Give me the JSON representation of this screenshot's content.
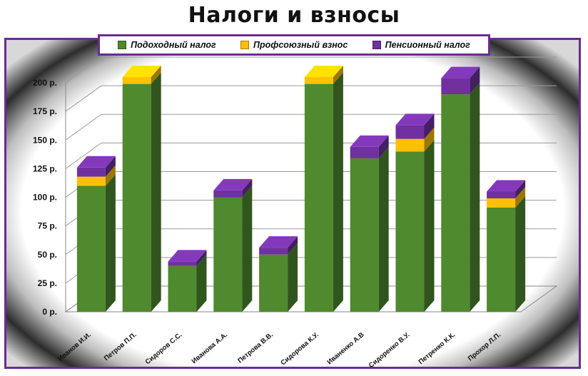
{
  "chart_data": {
    "type": "bar",
    "stacked": true,
    "title": "Налоги и взносы",
    "categories": [
      "Иванов И.И.",
      "Петров П.П.",
      "Сидоров С.С.",
      "Иванова А.А.",
      "Петрова В.В.",
      "Сидорова К.У.",
      "Иваненко А.В",
      "Сидоренко В.У.",
      "Петренко К.К.",
      "Прохор Л.П."
    ],
    "series": [
      {
        "name": "Подоходный налог",
        "color": "#4f8a2e",
        "values": [
          110,
          199,
          40,
          100,
          50,
          199,
          134,
          140,
          190,
          91
        ]
      },
      {
        "name": "Профсоюзный взнос",
        "color": "#ffc000",
        "values": [
          8,
          6,
          0,
          0,
          0,
          6,
          0,
          11,
          0,
          8
        ]
      },
      {
        "name": "Пенсионный налог",
        "color": "#7030a0",
        "values": [
          8,
          0,
          4,
          6,
          6,
          0,
          10,
          12,
          14,
          6
        ]
      }
    ],
    "yticks": [
      "0 р.",
      "25 р.",
      "50 р.",
      "75 р.",
      "100 р.",
      "125 р.",
      "150 р.",
      "175 р.",
      "200 р."
    ],
    "ylim": [
      0,
      200
    ],
    "legend": "top",
    "grid": true,
    "style": "3d-columns"
  }
}
